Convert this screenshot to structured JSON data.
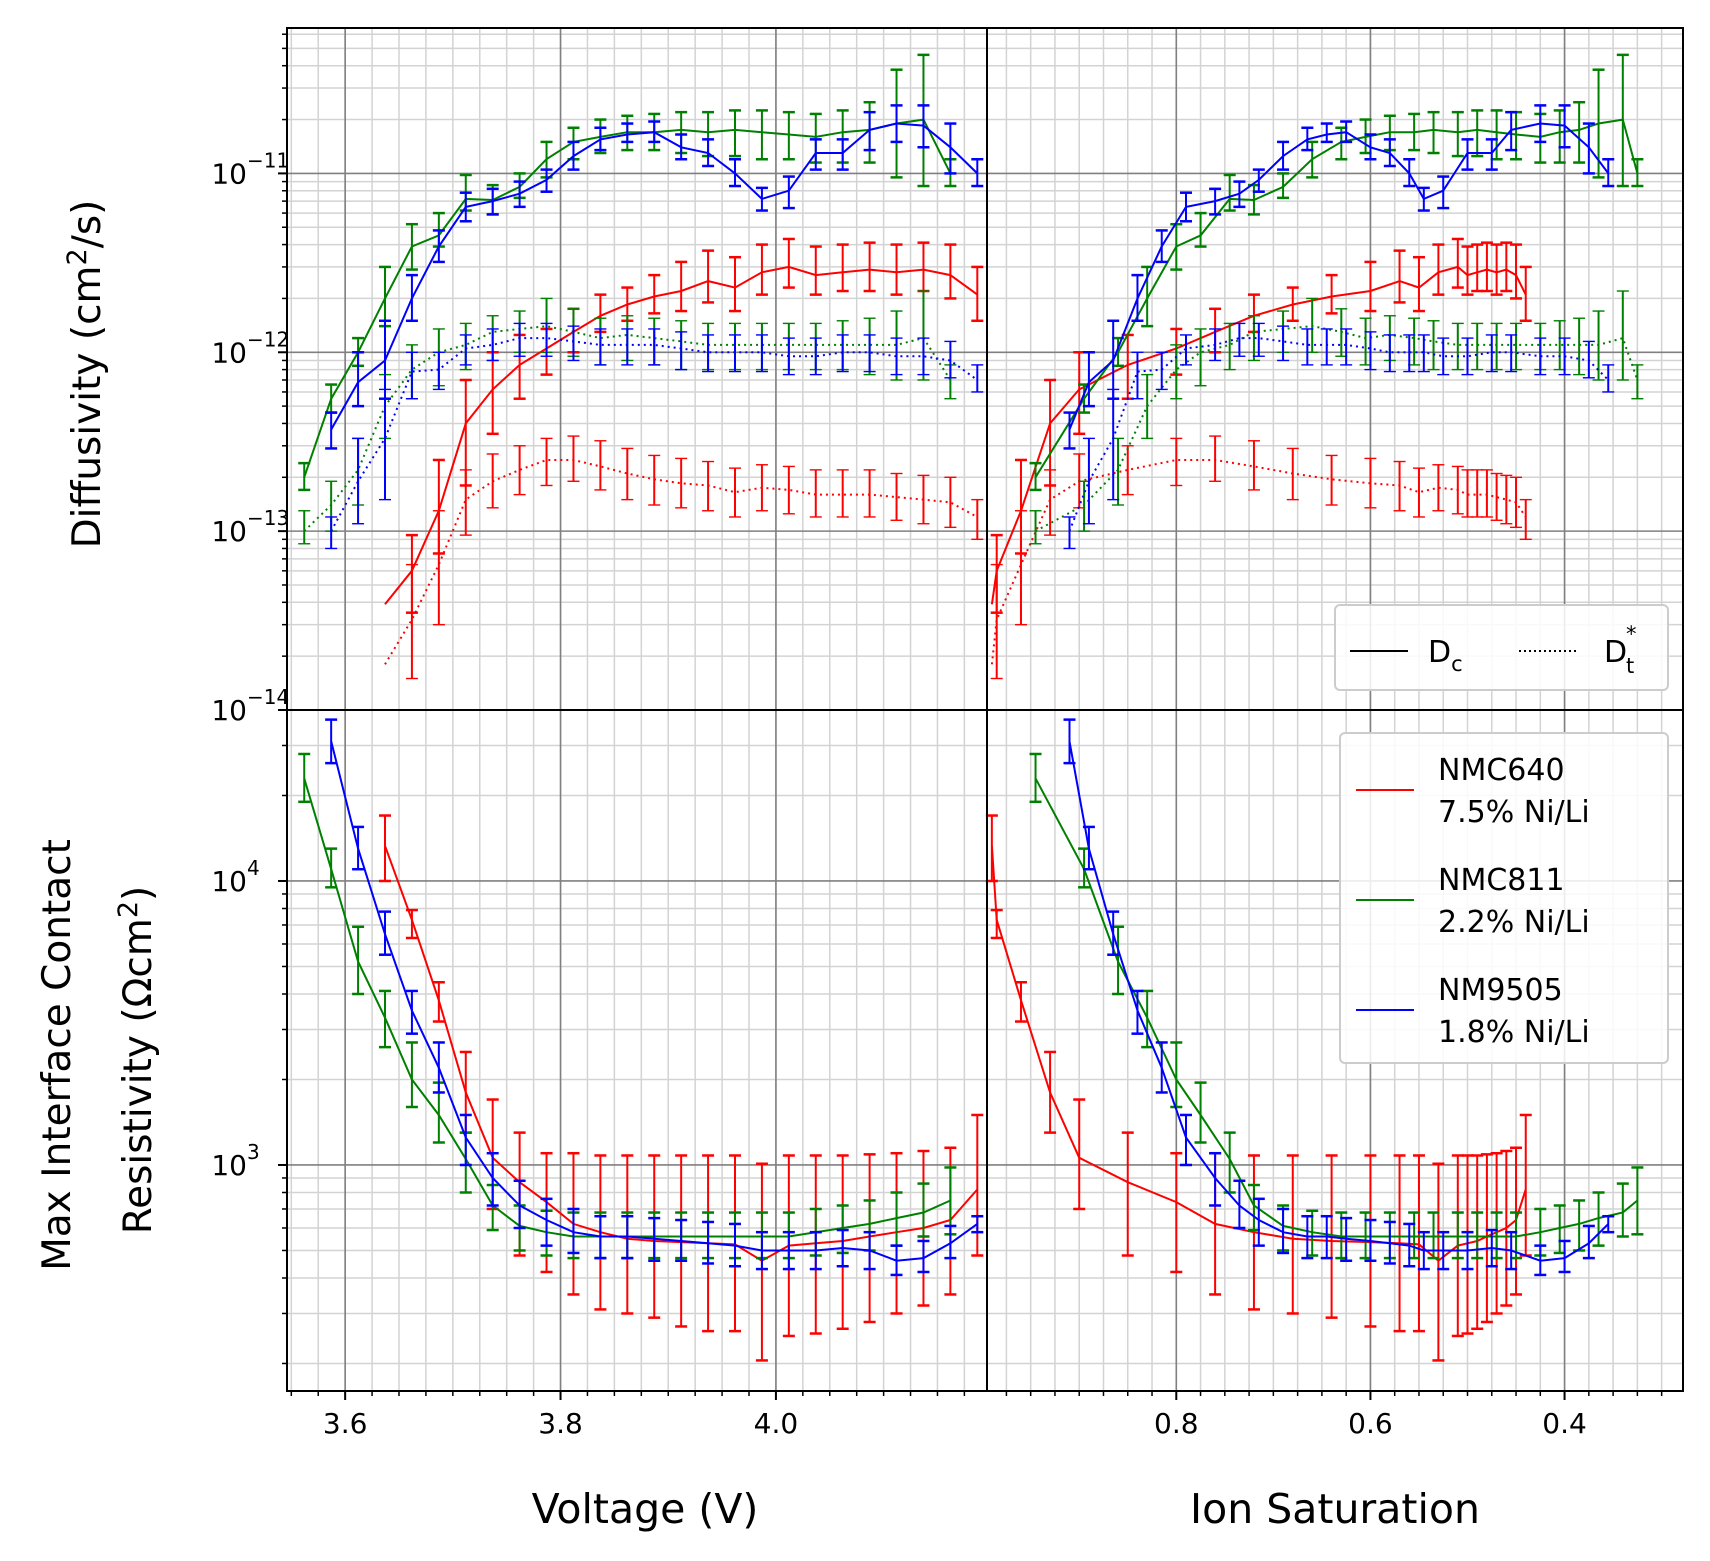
{
  "chart_data": {
    "type": "line",
    "grid": true,
    "colors": {
      "NMC640": "#ff0000",
      "NMC811": "#008000",
      "NM9505": "#0000ff",
      "grid_major": "#808080",
      "grid_minor": "#d3d3d3"
    },
    "xlabels": {
      "voltage": "Voltage (V)",
      "saturation": "Ion Saturation"
    },
    "ylabels": {
      "diffusivity": {
        "base": "Diffusivity (cm",
        "sup": "2",
        "tail": "/s)"
      },
      "resistivity": {
        "line1": "Max Interface Contact",
        "base": "Resistivity (Ωcm",
        "sup": "2",
        "tail": ")"
      }
    },
    "xaxis": {
      "voltage": {
        "range": [
          3.546,
          4.196
        ],
        "ticks": [
          "3.6",
          "3.8",
          "4.0"
        ],
        "tick_values": [
          3.6,
          3.8,
          4.0
        ]
      },
      "saturation": {
        "range": [
          0.995,
          0.278
        ],
        "ticks": [
          "0.8",
          "0.6",
          "0.4"
        ],
        "tick_values": [
          0.8,
          0.6,
          0.4
        ]
      }
    },
    "yaxis": {
      "diffusivity": {
        "scale": "log",
        "range": [
          1e-14,
          6.5e-11
        ],
        "ticks": [
          "10",
          "10",
          "10",
          "10"
        ],
        "tick_exps": [
          "−14",
          "−13",
          "−12",
          "−11"
        ],
        "tick_values": [
          1e-14,
          1e-13,
          1e-12,
          1e-11
        ]
      },
      "resistivity": {
        "scale": "log",
        "range": [
          160,
          40000
        ],
        "ticks": [
          "10",
          "10"
        ],
        "tick_exps": [
          "3",
          "4"
        ],
        "tick_values": [
          1000,
          10000
        ]
      }
    },
    "legend_diffusion": {
      "placement": "lower right (top panels)",
      "entries": [
        {
          "style": "solid",
          "base": "D",
          "sub": "c"
        },
        {
          "style": "dotted",
          "base": "D",
          "sub": "t",
          "sup": "*"
        }
      ]
    },
    "legend_materials": {
      "placement": "upper right (bottom panels)",
      "entries": [
        {
          "series": "NMC640",
          "line1": "NMC640",
          "line2": "7.5% Ni/Li"
        },
        {
          "series": "NMC811",
          "line1": "NMC811",
          "line2": "2.2% Ni/Li"
        },
        {
          "series": "NM9505",
          "line1": "NM9505",
          "line2": "1.8% Ni/Li"
        }
      ]
    },
    "series": {
      "NMC640": {
        "voltage": [
          3.637,
          3.662,
          3.687,
          3.712,
          3.737,
          3.762,
          3.787,
          3.812,
          3.837,
          3.862,
          3.887,
          3.912,
          3.937,
          3.962,
          3.987,
          4.012,
          4.037,
          4.062,
          4.087,
          4.112,
          4.137,
          4.162,
          4.187
        ],
        "saturation": [
          0.99,
          0.985,
          0.96,
          0.93,
          0.9,
          0.85,
          0.8,
          0.76,
          0.72,
          0.68,
          0.64,
          0.6,
          0.57,
          0.55,
          0.53,
          0.51,
          0.5,
          0.49,
          0.48,
          0.47,
          0.46,
          0.45,
          0.44
        ],
        "dc": [
          3.9e-14,
          6e-14,
          1.3e-13,
          4e-13,
          6.2e-13,
          8.5e-13,
          1.05e-12,
          1.3e-12,
          1.6e-12,
          1.85e-12,
          2.05e-12,
          2.2e-12,
          2.5e-12,
          2.3e-12,
          2.8e-12,
          3e-12,
          2.7e-12,
          2.8e-12,
          2.9e-12,
          2.8e-12,
          2.9e-12,
          2.7e-12,
          2.1e-12
        ],
        "dc_lo": [
          null,
          3.5e-14,
          7.5e-14,
          1.8e-13,
          3.5e-13,
          5.5e-13,
          7.5e-13,
          1e-12,
          1.3e-12,
          1.5e-12,
          1.65e-12,
          1.7e-12,
          1.9e-12,
          1.7e-12,
          2.1e-12,
          2.3e-12,
          2.1e-12,
          2.2e-12,
          2.2e-12,
          2.1e-12,
          2.2e-12,
          2e-12,
          1.5e-12
        ],
        "dc_hi": [
          null,
          9.5e-14,
          2.5e-13,
          7e-13,
          1e-12,
          1.25e-12,
          1.35e-12,
          1.75e-12,
          2.1e-12,
          2.3e-12,
          2.7e-12,
          3.2e-12,
          3.7e-12,
          3.4e-12,
          4e-12,
          4.3e-12,
          3.9e-12,
          4e-12,
          4.1e-12,
          4e-12,
          4.1e-12,
          4e-12,
          3e-12
        ],
        "dt": [
          1.8e-14,
          3.2e-14,
          6.5e-14,
          1.5e-13,
          1.9e-13,
          2.2e-13,
          2.5e-13,
          2.5e-13,
          2.3e-13,
          2.1e-13,
          1.95e-13,
          1.85e-13,
          1.8e-13,
          1.65e-13,
          1.75e-13,
          1.7e-13,
          1.6e-13,
          1.6e-13,
          1.6e-13,
          1.55e-13,
          1.5e-13,
          1.45e-13,
          1.2e-13
        ],
        "dt_lo": [
          null,
          1.5e-14,
          3e-14,
          9.5e-14,
          1.35e-13,
          1.6e-13,
          1.8e-13,
          1.9e-13,
          1.7e-13,
          1.5e-13,
          1.4e-13,
          1.35e-13,
          1.3e-13,
          1.2e-13,
          1.3e-13,
          1.25e-13,
          1.2e-13,
          1.2e-13,
          1.2e-13,
          1.15e-13,
          1.1e-13,
          1.05e-13,
          9e-14
        ],
        "dt_hi": [
          null,
          6.5e-14,
          1.3e-13,
          2.2e-13,
          2.7e-13,
          3e-13,
          3.3e-13,
          3.4e-13,
          3.2e-13,
          2.9e-13,
          2.65e-13,
          2.55e-13,
          2.45e-13,
          2.25e-13,
          2.35e-13,
          2.3e-13,
          2.2e-13,
          2.2e-13,
          2.2e-13,
          2.1e-13,
          2.05e-13,
          2e-13,
          1.5e-13
        ],
        "r": [
          13300,
          7300,
          3800,
          1800,
          1060,
          870,
          740,
          620,
          580,
          550,
          540,
          535,
          530,
          525,
          460,
          520,
          530,
          540,
          560,
          580,
          600,
          640,
          820
        ],
        "r_lo": [
          10000,
          6300,
          3200,
          1300,
          700,
          480,
          420,
          350,
          310,
          300,
          290,
          270,
          260,
          260,
          205,
          250,
          255,
          265,
          280,
          300,
          320,
          350,
          480
        ],
        "r_hi": [
          17000,
          7900,
          4400,
          2500,
          1700,
          1300,
          1100,
          1100,
          1080,
          1080,
          1080,
          1080,
          1080,
          1080,
          1010,
          1080,
          1080,
          1080,
          1090,
          1100,
          1120,
          1150,
          1500
        ]
      },
      "NMC811": {
        "voltage": [
          3.562,
          3.587,
          3.612,
          3.637,
          3.662,
          3.687,
          3.712,
          3.737,
          3.762,
          3.787,
          3.812,
          3.837,
          3.862,
          3.887,
          3.912,
          3.937,
          3.962,
          3.987,
          4.012,
          4.037,
          4.062,
          4.087,
          4.112,
          4.137,
          4.162
        ],
        "saturation": [
          0.945,
          0.895,
          0.86,
          0.83,
          0.8,
          0.775,
          0.745,
          0.72,
          0.69,
          0.66,
          0.63,
          0.605,
          0.58,
          0.555,
          0.535,
          0.51,
          0.49,
          0.47,
          0.45,
          0.425,
          0.405,
          0.385,
          0.365,
          0.34,
          0.325
        ],
        "dc": [
          2e-13,
          5.5e-13,
          1e-12,
          2e-12,
          3.9e-12,
          4.5e-12,
          7.2e-12,
          7.1e-12,
          8.4e-12,
          1.2e-11,
          1.5e-11,
          1.6e-11,
          1.7e-11,
          1.7e-11,
          1.75e-11,
          1.7e-11,
          1.75e-11,
          1.7e-11,
          1.65e-11,
          1.6e-11,
          1.7e-11,
          1.75e-11,
          1.9e-11,
          2e-11,
          1e-11
        ],
        "dc_lo": [
          1.7e-13,
          4.6e-13,
          8.4e-13,
          1.4e-12,
          2.9e-12,
          3.9e-12,
          6.2e-12,
          5.9e-12,
          7.3e-12,
          9.5e-12,
          1.2e-11,
          1.3e-11,
          1.35e-11,
          1.35e-11,
          1.3e-11,
          1.25e-11,
          1.25e-11,
          1.2e-11,
          1.2e-11,
          1.15e-11,
          1.15e-11,
          1.15e-11,
          9.5e-12,
          8.5e-12,
          8.5e-12
        ],
        "dc_hi": [
          2.4e-13,
          6.6e-13,
          1.2e-12,
          3e-12,
          5.2e-12,
          6e-12,
          9.8e-12,
          8.6e-12,
          1e-11,
          1.5e-11,
          1.8e-11,
          2e-11,
          2.1e-11,
          2.15e-11,
          2.2e-11,
          2.2e-11,
          2.25e-11,
          2.25e-11,
          2.2e-11,
          2.15e-11,
          2.25e-11,
          2.5e-11,
          3.8e-11,
          4.6e-11,
          1.2e-11
        ],
        "dt": [
          1e-13,
          1.4e-13,
          2.2e-13,
          5e-13,
          8e-13,
          1e-12,
          1.1e-12,
          1.3e-12,
          1.35e-12,
          1.4e-12,
          1.3e-12,
          1.2e-12,
          1.25e-12,
          1.2e-12,
          1.15e-12,
          1.1e-12,
          1.1e-12,
          1.1e-12,
          1.1e-12,
          1.1e-12,
          1.1e-12,
          1.1e-12,
          1.1e-12,
          1.2e-12,
          7e-13
        ],
        "dt_lo": [
          8.5e-14,
          1e-13,
          1.4e-13,
          3.3e-13,
          5.5e-13,
          6.5e-13,
          8e-13,
          9e-13,
          1e-12,
          1e-12,
          9.5e-13,
          8.5e-13,
          9e-13,
          8.5e-13,
          8e-13,
          8e-13,
          8e-13,
          8e-13,
          8e-13,
          8e-13,
          8e-13,
          7.5e-13,
          7e-13,
          7e-13,
          5.5e-13
        ],
        "dt_hi": [
          1.3e-13,
          1.9e-13,
          3.3e-13,
          7.5e-13,
          1.1e-12,
          1.35e-12,
          1.45e-12,
          1.6e-12,
          1.7e-12,
          2e-12,
          1.75e-12,
          1.55e-12,
          1.6e-12,
          1.55e-12,
          1.5e-12,
          1.45e-12,
          1.45e-12,
          1.45e-12,
          1.45e-12,
          1.45e-12,
          1.5e-12,
          1.55e-12,
          1.7e-12,
          2.2e-12,
          8.5e-13
        ],
        "r": [
          23000,
          11000,
          5200,
          3300,
          2000,
          1500,
          1050,
          720,
          610,
          580,
          560,
          560,
          560,
          560,
          560,
          560,
          560,
          560,
          560,
          580,
          600,
          620,
          650,
          680,
          750
        ],
        "r_lo": [
          19000,
          9500,
          4000,
          2600,
          1600,
          1200,
          800,
          590,
          500,
          480,
          470,
          470,
          470,
          470,
          470,
          470,
          470,
          470,
          470,
          480,
          490,
          500,
          520,
          560,
          570
        ],
        "r_hi": [
          28000,
          13000,
          6900,
          4100,
          2700,
          1950,
          1300,
          850,
          720,
          690,
          680,
          680,
          680,
          680,
          680,
          680,
          680,
          680,
          680,
          700,
          720,
          750,
          800,
          860,
          980
        ]
      },
      "NM9505": {
        "voltage": [
          3.587,
          3.612,
          3.637,
          3.662,
          3.687,
          3.712,
          3.737,
          3.762,
          3.787,
          3.812,
          3.837,
          3.862,
          3.887,
          3.912,
          3.937,
          3.962,
          3.987,
          4.012,
          4.037,
          4.062,
          4.087,
          4.112,
          4.137,
          4.162,
          4.187
        ],
        "saturation": [
          0.91,
          0.89,
          0.865,
          0.84,
          0.815,
          0.79,
          0.76,
          0.735,
          0.715,
          0.69,
          0.665,
          0.645,
          0.625,
          0.6,
          0.58,
          0.56,
          0.545,
          0.525,
          0.5,
          0.475,
          0.455,
          0.425,
          0.4,
          0.375,
          0.355
        ],
        "dc": [
          3.7e-13,
          6.8e-13,
          9e-13,
          2e-12,
          3.9e-12,
          6.5e-12,
          7e-12,
          7.7e-12,
          9.2e-12,
          1.25e-11,
          1.55e-11,
          1.65e-11,
          1.7e-11,
          1.4e-11,
          1.3e-11,
          1e-11,
          7.2e-12,
          8e-12,
          1.3e-11,
          1.3e-11,
          1.75e-11,
          1.9e-11,
          1.85e-11,
          1.4e-11,
          1e-11
        ],
        "dc_lo": [
          2.9e-13,
          5e-13,
          5.5e-13,
          1.5e-12,
          3.2e-12,
          5.4e-12,
          5.9e-12,
          6.5e-12,
          7.9e-12,
          1.05e-11,
          1.35e-11,
          1.5e-11,
          1.5e-11,
          1.2e-11,
          1.1e-11,
          8.5e-12,
          6.2e-12,
          6.4e-12,
          1.05e-11,
          1.05e-11,
          1.35e-11,
          1.5e-11,
          1.4e-11,
          1e-11,
          8.5e-12
        ],
        "dc_hi": [
          4.6e-13,
          1e-12,
          1.5e-12,
          2.7e-12,
          4.8e-12,
          7.8e-12,
          8.2e-12,
          9e-12,
          1.05e-11,
          1.5e-11,
          1.8e-11,
          1.9e-11,
          1.95e-11,
          1.65e-11,
          1.55e-11,
          1.2e-11,
          8.3e-12,
          9.6e-12,
          1.55e-11,
          1.55e-11,
          2.2e-11,
          2.4e-11,
          2.4e-11,
          1.9e-11,
          1.2e-11
        ],
        "dt": [
          1e-13,
          1.9e-13,
          3.3e-13,
          7.8e-13,
          8e-13,
          1.05e-12,
          1.1e-12,
          1.2e-12,
          1.2e-12,
          1.15e-12,
          1.1e-12,
          1.1e-12,
          1.1e-12,
          1.05e-12,
          1e-12,
          1e-12,
          1e-12,
          9.5e-13,
          9.5e-13,
          1e-12,
          1e-12,
          9.5e-13,
          9.5e-13,
          9e-13,
          7e-13
        ],
        "dt_lo": [
          8e-14,
          1.1e-13,
          1.5e-13,
          5.5e-13,
          6.2e-13,
          8.5e-13,
          9e-13,
          9.5e-13,
          9.5e-13,
          9e-13,
          8.5e-13,
          8.5e-13,
          8.5e-13,
          8e-13,
          7.8e-13,
          7.8e-13,
          7.8e-13,
          7.5e-13,
          7.5e-13,
          7.8e-13,
          7.8e-13,
          7.5e-13,
          7.5e-13,
          7.2e-13,
          6e-13
        ],
        "dt_hi": [
          1.2e-13,
          3.3e-13,
          6.2e-13,
          1e-12,
          1e-12,
          1.25e-12,
          1.35e-12,
          1.45e-12,
          1.45e-12,
          1.4e-12,
          1.35e-12,
          1.35e-12,
          1.35e-12,
          1.3e-12,
          1.25e-12,
          1.25e-12,
          1.25e-12,
          1.2e-12,
          1.2e-12,
          1.25e-12,
          1.25e-12,
          1.2e-12,
          1.2e-12,
          1.15e-12,
          8.5e-13
        ],
        "r": [
          31000,
          13000,
          6500,
          3500,
          2200,
          1250,
          900,
          720,
          640,
          580,
          560,
          560,
          550,
          540,
          530,
          520,
          500,
          500,
          500,
          510,
          500,
          460,
          470,
          530,
          620
        ],
        "r_lo": [
          26000,
          11000,
          5500,
          2900,
          1800,
          1000,
          720,
          600,
          520,
          490,
          470,
          470,
          460,
          460,
          450,
          440,
          430,
          430,
          430,
          440,
          430,
          410,
          420,
          470,
          580
        ],
        "r_hi": [
          37000,
          15500,
          7800,
          4100,
          2700,
          1500,
          1100,
          880,
          760,
          700,
          660,
          660,
          650,
          640,
          630,
          620,
          580,
          580,
          580,
          590,
          580,
          520,
          540,
          610,
          660
        ]
      }
    }
  }
}
